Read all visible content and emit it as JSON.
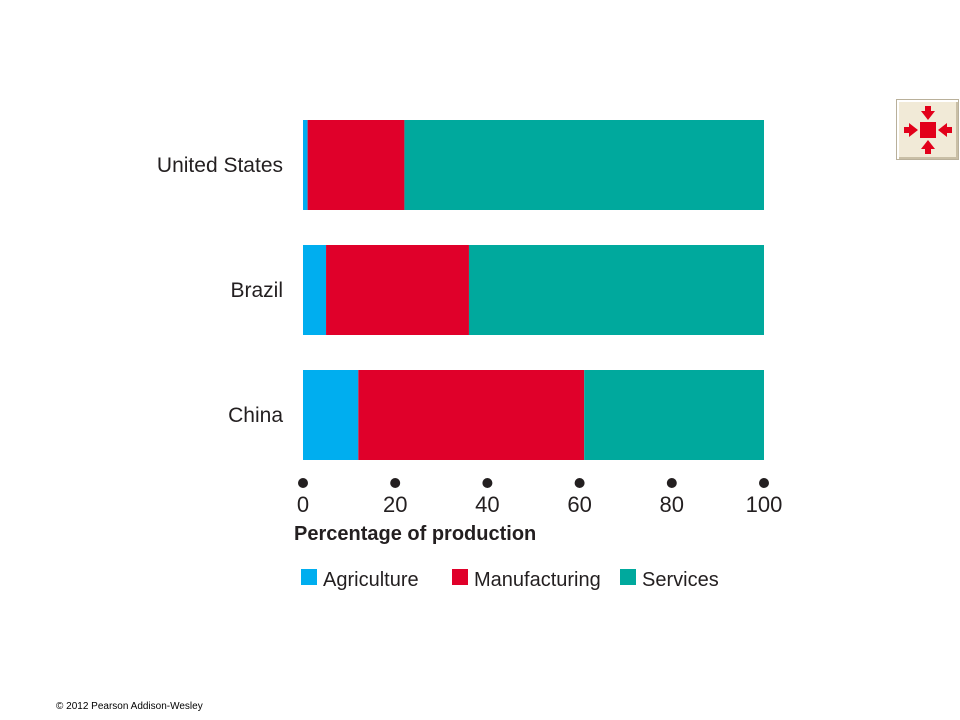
{
  "chart_data": {
    "type": "bar",
    "orientation": "horizontal",
    "stacked": true,
    "categories": [
      "United States",
      "Brazil",
      "China"
    ],
    "series": [
      {
        "name": "Agriculture",
        "color": "#00aeef",
        "values": [
          1,
          5,
          12
        ]
      },
      {
        "name": "Manufacturing",
        "color": "#e0002a",
        "values": [
          21,
          31,
          49
        ]
      },
      {
        "name": "Services",
        "color": "#00a99d",
        "values": [
          78,
          64,
          39
        ]
      }
    ],
    "xlim": [
      0,
      100
    ],
    "xticks": [
      0,
      20,
      40,
      60,
      80,
      100
    ],
    "xlabel": "Percentage of production",
    "ylabel": "",
    "title": "",
    "grid": false,
    "legend": "bottom"
  },
  "footer": {
    "copyright": "© 2012 Pearson Addison-Wesley"
  },
  "nav": {
    "icon": "expand-arrows-icon",
    "icon_color": "#e2001a"
  }
}
